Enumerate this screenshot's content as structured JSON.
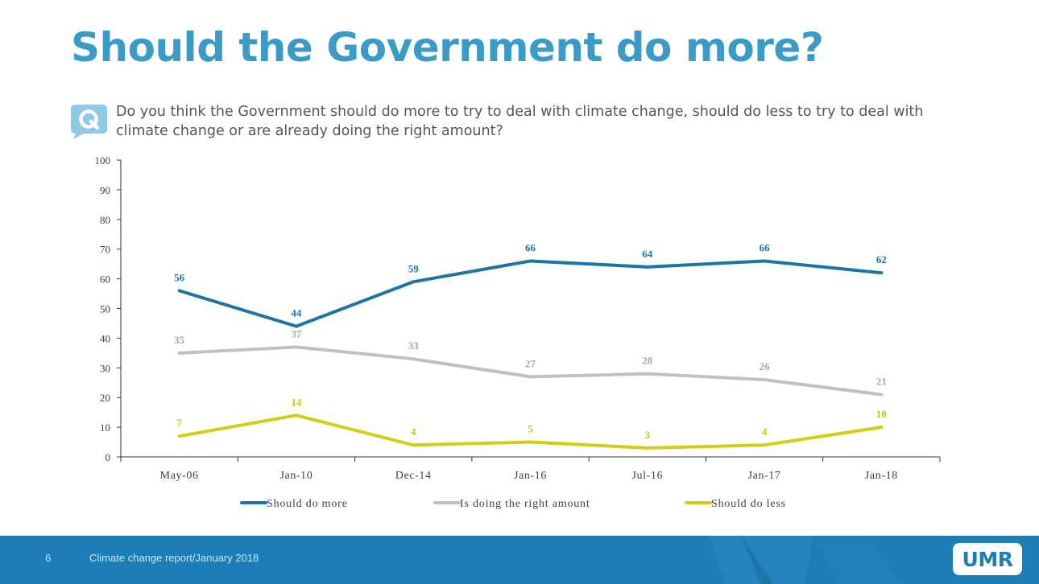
{
  "page": {
    "title": "Should the Government do more?",
    "question": "Do you think the Government should do more to try to deal with climate change, should do less to try to deal with climate change or are already doing the right amount?"
  },
  "chart_data": {
    "type": "line",
    "title": "",
    "xlabel": "",
    "ylabel": "",
    "ylim": [
      0,
      100
    ],
    "yticks": [
      "0",
      "10",
      "20",
      "30",
      "40",
      "50",
      "60",
      "70",
      "80",
      "90",
      "100"
    ],
    "categories": [
      "May-06",
      "Jan-10",
      "Dec-14",
      "Jan-16",
      "Jul-16",
      "Jan-17",
      "Jan-18"
    ],
    "legend_position": "bottom",
    "grid": false,
    "series": [
      {
        "name": "Should do more",
        "color": "#1c75a3",
        "label_color": "#1c75a3",
        "values": [
          56,
          44,
          59,
          66,
          64,
          66,
          62
        ],
        "labels": [
          "56",
          "44",
          "59",
          "66",
          "64",
          "66",
          "62"
        ]
      },
      {
        "name": "Is doing the right amount",
        "color": "#c0c0c0",
        "label_color": "#a6a6a6",
        "values": [
          35,
          37,
          33,
          27,
          28,
          26,
          21
        ],
        "labels": [
          "35",
          "37",
          "33",
          "27",
          "28",
          "26",
          "21"
        ]
      },
      {
        "name": "Should do less",
        "color": "#d4ce12",
        "label_color": "#c9c20c",
        "values": [
          7,
          14,
          4,
          5,
          3,
          4,
          10
        ],
        "labels": [
          "7",
          "14",
          "4",
          "5",
          "3",
          "4",
          "10"
        ]
      }
    ]
  },
  "footer": {
    "page_number": "6",
    "text": "Climate change report/January 2018",
    "logo_text": "UMR",
    "color": "#1d7db5"
  }
}
